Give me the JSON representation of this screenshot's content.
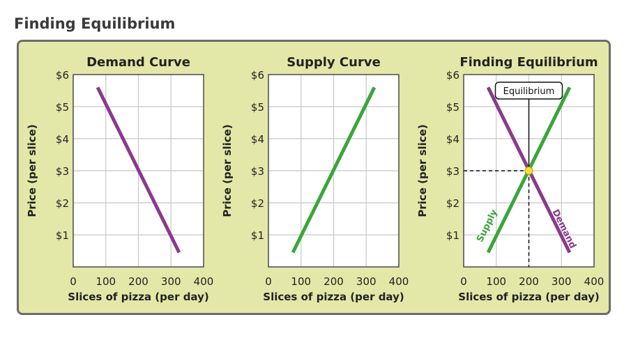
{
  "figure_title": "Finding Equilibrium",
  "colors": {
    "panel_bg": "#e3e8a8",
    "panel_border": "#6b6b6b",
    "demand": "#8a3a8c",
    "supply": "#3aa53a",
    "equilibrium_point": "#f2e030",
    "grid": "#c8c8c8"
  },
  "chart_data": [
    {
      "type": "line",
      "title": "Demand Curve",
      "xlabel": "Slices of pizza (per day)",
      "ylabel": "Price (per slice)",
      "xlim": [
        0,
        400
      ],
      "ylim": [
        0,
        6
      ],
      "x_ticks": [
        "0",
        "100",
        "200",
        "300",
        "400"
      ],
      "y_ticks": [
        "$1",
        "$2",
        "$3",
        "$4",
        "$5",
        "$6"
      ],
      "grid": true,
      "series": [
        {
          "key": "demand",
          "color": "#8a3a8c",
          "x": [
            75,
            325
          ],
          "y": [
            5.6,
            0.45
          ]
        }
      ]
    },
    {
      "type": "line",
      "title": "Supply Curve",
      "xlabel": "Slices of pizza (per day)",
      "ylabel": "Price (per slice)",
      "xlim": [
        0,
        400
      ],
      "ylim": [
        0,
        6
      ],
      "x_ticks": [
        "0",
        "100",
        "200",
        "300",
        "400"
      ],
      "y_ticks": [
        "$1",
        "$2",
        "$3",
        "$4",
        "$5",
        "$6"
      ],
      "grid": true,
      "series": [
        {
          "key": "supply",
          "color": "#3aa53a",
          "x": [
            75,
            325
          ],
          "y": [
            0.45,
            5.6
          ]
        }
      ]
    },
    {
      "type": "line",
      "title": "Finding Equilibrium",
      "xlabel": "Slices of pizza (per day)",
      "ylabel": "Price (per slice)",
      "xlim": [
        0,
        400
      ],
      "ylim": [
        0,
        6
      ],
      "x_ticks": [
        "0",
        "100",
        "200",
        "300",
        "400"
      ],
      "y_ticks": [
        "$1",
        "$2",
        "$3",
        "$4",
        "$5",
        "$6"
      ],
      "grid": true,
      "series": [
        {
          "key": "demand",
          "name": "Demand",
          "color": "#8a3a8c",
          "x": [
            75,
            325
          ],
          "y": [
            5.6,
            0.45
          ]
        },
        {
          "key": "supply",
          "name": "Supply",
          "color": "#3aa53a",
          "x": [
            75,
            325
          ],
          "y": [
            0.45,
            5.6
          ]
        }
      ],
      "equilibrium": {
        "label": "Equilibrium",
        "x": 200,
        "y": 3
      }
    }
  ]
}
